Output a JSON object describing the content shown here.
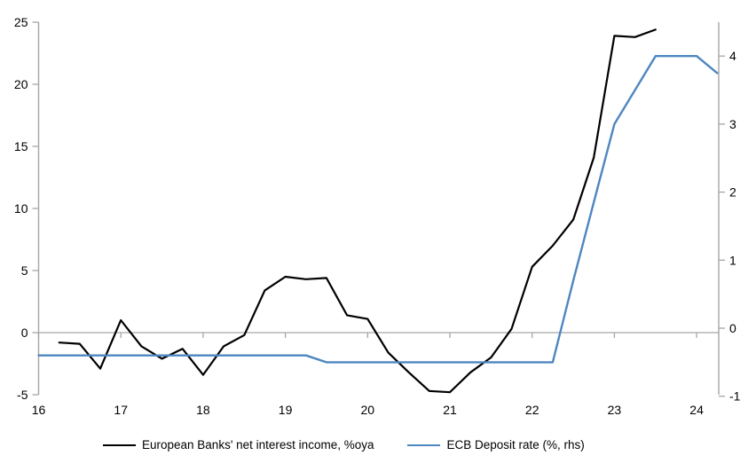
{
  "chart_data": {
    "type": "line",
    "title": "",
    "x_axis": {
      "tick_labels": [
        "16",
        "17",
        "18",
        "19",
        "20",
        "21",
        "22",
        "23",
        "24"
      ],
      "tick_values": [
        16,
        17,
        18,
        19,
        20,
        21,
        22,
        23,
        24
      ],
      "range": [
        16,
        24.3
      ]
    },
    "y_left_axis": {
      "tick_labels": [
        "25",
        "20",
        "15",
        "10",
        "5",
        "0",
        "-5"
      ],
      "tick_values": [
        25,
        20,
        15,
        10,
        5,
        0,
        -5
      ],
      "range": [
        -5,
        25
      ]
    },
    "y_right_axis": {
      "tick_labels": [
        "4",
        "3",
        "2",
        "1",
        "0",
        "-1"
      ],
      "tick_values": [
        4,
        3,
        2,
        1,
        0,
        -1
      ],
      "range": [
        -1,
        4.5
      ]
    },
    "grid": "zero-line-only",
    "legend_position": "bottom",
    "colors": {
      "axis": "#A6A6A6",
      "zero_line": "#A6A6A6",
      "text": "#000000",
      "background": "#FFFFFF",
      "nii_line": "#000000",
      "deposit_rate_line": "#4E86C0"
    },
    "series": [
      {
        "name": "European Banks' net interest income, %oya",
        "axis": "left",
        "color": "#000000",
        "stroke_width": 2.2,
        "x": [
          16.25,
          16.5,
          16.75,
          17.0,
          17.25,
          17.5,
          17.75,
          18.0,
          18.25,
          18.5,
          18.75,
          19.0,
          19.25,
          19.5,
          19.75,
          20.0,
          20.25,
          20.5,
          20.75,
          21.0,
          21.25,
          21.5,
          21.75,
          22.0,
          22.25,
          22.5,
          22.75,
          23.0,
          23.25,
          23.5
        ],
        "values": [
          -0.8,
          -0.9,
          -2.9,
          1.0,
          -1.1,
          -2.1,
          -1.3,
          -3.4,
          -1.1,
          -0.2,
          3.4,
          4.5,
          4.3,
          4.4,
          1.4,
          1.1,
          -1.6,
          -3.2,
          -4.7,
          -4.8,
          -3.2,
          -2.0,
          0.3,
          5.3,
          7.0,
          9.1,
          14.1,
          23.9,
          23.8,
          24.4
        ]
      },
      {
        "name": "ECB Deposit rate (%, rhs)",
        "axis": "right",
        "color": "#4E86C0",
        "stroke_width": 2.4,
        "x": [
          16.0,
          16.25,
          16.5,
          16.75,
          17.0,
          17.25,
          17.5,
          17.75,
          18.0,
          18.25,
          18.5,
          18.75,
          19.0,
          19.25,
          19.5,
          19.75,
          20.0,
          20.25,
          20.5,
          20.75,
          21.0,
          21.25,
          21.5,
          21.75,
          22.0,
          22.25,
          22.5,
          22.75,
          23.0,
          23.25,
          23.5,
          23.75,
          24.0,
          24.25
        ],
        "values": [
          -0.4,
          -0.4,
          -0.4,
          -0.4,
          -0.4,
          -0.4,
          -0.4,
          -0.4,
          -0.4,
          -0.4,
          -0.4,
          -0.4,
          -0.4,
          -0.4,
          -0.5,
          -0.5,
          -0.5,
          -0.5,
          -0.5,
          -0.5,
          -0.5,
          -0.5,
          -0.5,
          -0.5,
          -0.5,
          -0.5,
          0.7,
          1.85,
          3.0,
          3.5,
          4.0,
          4.0,
          4.0,
          3.75
        ]
      }
    ]
  }
}
